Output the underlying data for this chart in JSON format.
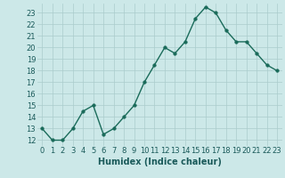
{
  "x": [
    0,
    1,
    2,
    3,
    4,
    5,
    6,
    7,
    8,
    9,
    10,
    11,
    12,
    13,
    14,
    15,
    16,
    17,
    18,
    19,
    20,
    21,
    22,
    23
  ],
  "y": [
    13,
    12,
    12,
    13,
    14.5,
    15,
    12.5,
    13,
    14,
    15,
    17,
    18.5,
    20,
    19.5,
    20.5,
    22.5,
    23.5,
    23,
    21.5,
    20.5,
    20.5,
    19.5,
    18.5,
    18
  ],
  "line_color": "#1a6b5a",
  "marker_color": "#1a6b5a",
  "bg_color": "#cce8e8",
  "grid_color": "#aacccc",
  "xlabel": "Humidex (Indice chaleur)",
  "xlim": [
    -0.5,
    23.5
  ],
  "ylim": [
    11.5,
    23.8
  ],
  "yticks": [
    12,
    13,
    14,
    15,
    16,
    17,
    18,
    19,
    20,
    21,
    22,
    23
  ],
  "xticks": [
    0,
    1,
    2,
    3,
    4,
    5,
    6,
    7,
    8,
    9,
    10,
    11,
    12,
    13,
    14,
    15,
    16,
    17,
    18,
    19,
    20,
    21,
    22,
    23
  ],
  "xtick_labels": [
    "0",
    "1",
    "2",
    "3",
    "4",
    "5",
    "6",
    "7",
    "8",
    "9",
    "10",
    "11",
    "12",
    "13",
    "14",
    "15",
    "16",
    "17",
    "18",
    "19",
    "20",
    "21",
    "22",
    "23"
  ],
  "ytick_labels": [
    "12",
    "13",
    "14",
    "15",
    "16",
    "17",
    "18",
    "19",
    "20",
    "21",
    "22",
    "23"
  ],
  "font_color": "#1a5a5a",
  "marker_size": 2.5,
  "line_width": 1.0,
  "xlabel_fontsize": 7,
  "tick_fontsize": 6
}
